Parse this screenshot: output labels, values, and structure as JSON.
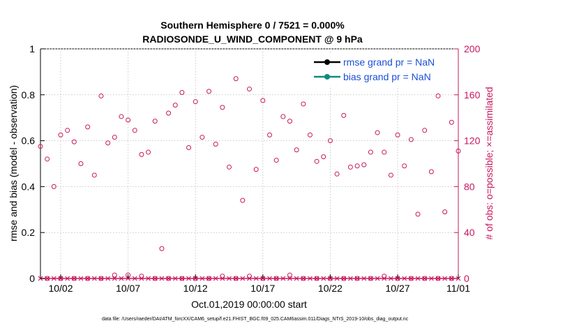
{
  "chart_data": {
    "type": "scatter",
    "title_line1": "Southern Hemisphere 0 / 7521 = 0.000%",
    "title_line2": "RADIOSONDE_U_WIND_COMPONENT @ 9 hPa",
    "ylabel_left": "rmse and bias (model - observation)",
    "ylabel_right": "# of obs: o=possible; ×=assimilated",
    "xlabel": "Oct.01,2019 00:00:00 start",
    "footnote": "data file: /Users/raeder/DAI/ATM_forcXX/CAM6_setup/f.e21.FHIST_BGC.f09_025.CAM6assim.011/Diags_NTrS_2019-10/obs_diag_output.nc",
    "ylim_left": [
      0,
      1
    ],
    "ylim_right": [
      0,
      200
    ],
    "xlim": [
      0.5,
      31.5
    ],
    "left_ticks": [
      "0",
      "0.2",
      "0.4",
      "0.6",
      "0.8",
      "1"
    ],
    "right_ticks": [
      "0",
      "40",
      "80",
      "120",
      "160",
      "200"
    ],
    "x_ticks": [
      {
        "x": 2,
        "label": "10/02"
      },
      {
        "x": 7,
        "label": "10/07"
      },
      {
        "x": 12,
        "label": "10/12"
      },
      {
        "x": 17,
        "label": "10/17"
      },
      {
        "x": 22,
        "label": "10/22"
      },
      {
        "x": 27,
        "label": "10/27"
      },
      {
        "x": 32,
        "label": "11/01"
      }
    ],
    "legend": [
      {
        "label": "rmse grand pr = NaN",
        "color": "#000000"
      },
      {
        "label": "bias grand pr = NaN",
        "color": "#0f8a80"
      }
    ],
    "colors": {
      "obs": "#c8175d",
      "rmse": "#000000",
      "bias": "#0f8a80"
    },
    "possible_obs": {
      "x": [
        0.5,
        1,
        1.5,
        2,
        2.5,
        3,
        3.5,
        4,
        4.5,
        5,
        5.5,
        6,
        6.5,
        7,
        7.5,
        8,
        8.5,
        9,
        9.5,
        10,
        10.5,
        11,
        11.5,
        12,
        12.5,
        13,
        13.5,
        14,
        14.5,
        15,
        15.5,
        16,
        16.5,
        17,
        17.5,
        18,
        18.5,
        19,
        19.5,
        20,
        20.5,
        21,
        21.5,
        22,
        22.5,
        23,
        23.5,
        24,
        24.5,
        25,
        25.5,
        26,
        26.5,
        27,
        27.5,
        28,
        28.5,
        29,
        29.5,
        30,
        30.5,
        31,
        31.5
      ],
      "y": [
        115,
        104,
        80,
        125,
        129,
        119,
        100,
        132,
        90,
        159,
        118,
        123,
        141,
        138,
        129,
        108,
        110,
        137,
        26,
        144,
        151,
        162,
        114,
        154,
        123,
        163,
        117,
        149,
        97,
        174,
        68,
        165,
        95,
        155,
        125,
        103,
        141,
        137,
        112,
        152,
        125,
        102,
        106,
        120,
        91,
        142,
        97,
        98,
        99,
        110,
        127,
        110,
        90,
        125,
        98,
        121,
        56,
        129,
        93,
        159,
        58,
        136,
        111
      ],
      "low_x": [
        1,
        2,
        3,
        4,
        5,
        6,
        7,
        8,
        9,
        10,
        11,
        12,
        13,
        14,
        15,
        16,
        17,
        18,
        19,
        20,
        21,
        22,
        23,
        24,
        25,
        26,
        27,
        28,
        29,
        30,
        31
      ],
      "low_y": [
        0,
        0,
        0,
        0,
        0,
        3,
        3,
        2,
        0,
        0,
        0,
        0,
        0,
        2,
        0,
        2,
        0,
        0,
        3,
        0,
        0,
        0,
        0,
        0,
        0,
        2,
        0,
        0,
        0,
        0,
        0
      ]
    },
    "assimilated_obs": {
      "x": [
        0.5,
        1,
        1.5,
        2,
        2.5,
        3,
        3.5,
        4,
        4.5,
        5,
        5.5,
        6,
        6.5,
        7,
        7.5,
        8,
        8.5,
        9,
        9.5,
        10,
        10.5,
        11,
        11.5,
        12,
        12.5,
        13,
        13.5,
        14,
        14.5,
        15,
        15.5,
        16,
        16.5,
        17,
        17.5,
        18,
        18.5,
        19,
        19.5,
        20,
        20.5,
        21,
        21.5,
        22,
        22.5,
        23,
        23.5,
        24,
        24.5,
        25,
        25.5,
        26,
        26.5,
        27,
        27.5,
        28,
        28.5,
        29,
        29.5,
        30,
        30.5,
        31,
        31.5
      ],
      "y": [
        0,
        0,
        0,
        0,
        0,
        0,
        0,
        0,
        0,
        0,
        0,
        0,
        0,
        0,
        0,
        0,
        0,
        0,
        0,
        0,
        0,
        0,
        0,
        0,
        0,
        0,
        0,
        0,
        0,
        0,
        0,
        0,
        0,
        0,
        0,
        0,
        0,
        0,
        0,
        0,
        0,
        0,
        0,
        0,
        0,
        0,
        0,
        0,
        0,
        0,
        0,
        0,
        0,
        0,
        0,
        0,
        0,
        0,
        0,
        0,
        0,
        0,
        0
      ]
    }
  }
}
